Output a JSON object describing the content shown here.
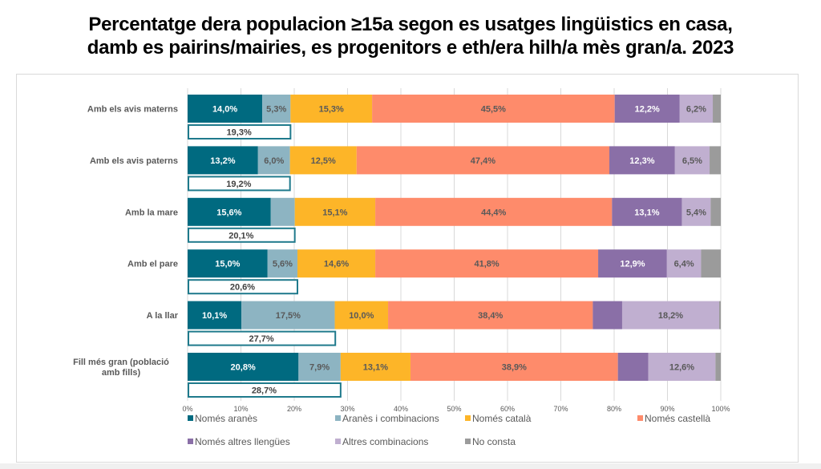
{
  "title_lines": [
    "Percentatge dera populacion ≥15a segon es usatges lingüistics en casa,",
    "damb es pairins/mairies, es progenitors e eth/era hilh/a mès gran/a. 2023"
  ],
  "chart_data": {
    "type": "bar",
    "orientation": "horizontal",
    "stacked": "percent",
    "title": "Percentatge dera populacion ≥15a segon es usatges lingüistics en casa, damb es pairins/mairies, es progenitors e eth/era hilh/a mès gran/a. 2023",
    "xlabel": "",
    "ylabel": "",
    "xlim": [
      0,
      100
    ],
    "x_ticks": [
      "0%",
      "10%",
      "20%",
      "30%",
      "40%",
      "50%",
      "60%",
      "70%",
      "80%",
      "90%",
      "100%"
    ],
    "grid": "vertical",
    "legend_position": "bottom",
    "categories": [
      "Amb els avis materns",
      "Amb els avis paterns",
      "Amb la mare",
      "Amb el pare",
      "A la llar",
      "Fill més gran (població amb fills)"
    ],
    "series": [
      {
        "name": "Només aranès",
        "color": "#006a80",
        "label_color": "#ffffff",
        "values": [
          14.0,
          13.2,
          15.6,
          15.0,
          10.1,
          20.8
        ],
        "labels": [
          "14,0%",
          "13,2%",
          "15,6%",
          "15,0%",
          "10,1%",
          "20,8%"
        ]
      },
      {
        "name": "Aranès i combinacions",
        "color": "#8db4c2",
        "label_color": "#595959",
        "values": [
          5.3,
          6.0,
          4.5,
          5.6,
          17.5,
          7.9
        ],
        "labels": [
          "5,3%",
          "6,0%",
          "",
          "5,6%",
          "17,5%",
          "7,9%"
        ]
      },
      {
        "name": "Només català",
        "color": "#fdb528",
        "label_color": "#595959",
        "values": [
          15.3,
          12.5,
          15.1,
          14.6,
          10.0,
          13.1
        ],
        "labels": [
          "15,3%",
          "12,5%",
          "15,1%",
          "14,6%",
          "10,0%",
          "13,1%"
        ]
      },
      {
        "name": "Només castellà",
        "color": "#fe8b6b",
        "label_color": "#595959",
        "values": [
          45.5,
          47.4,
          44.4,
          41.8,
          38.4,
          38.9
        ],
        "labels": [
          "45,5%",
          "47,4%",
          "44,4%",
          "41,8%",
          "38,4%",
          "38,9%"
        ]
      },
      {
        "name": "Només altres llengües",
        "color": "#8a6fa7",
        "label_color": "#ffffff",
        "values": [
          12.2,
          12.3,
          13.1,
          12.9,
          5.5,
          5.7
        ],
        "labels": [
          "12,2%",
          "12,3%",
          "13,1%",
          "12,9%",
          "",
          ""
        ]
      },
      {
        "name": "Altres combinacions",
        "color": "#c0afd0",
        "label_color": "#595959",
        "values": [
          6.2,
          6.5,
          5.4,
          6.4,
          18.2,
          12.6
        ],
        "labels": [
          "6,2%",
          "6,5%",
          "5,4%",
          "6,4%",
          "18,2%",
          "12,6%"
        ]
      },
      {
        "name": "No consta",
        "color": "#9b9b9b",
        "label_color": "#595959",
        "values": [
          1.5,
          2.1,
          1.9,
          3.7,
          0.3,
          1.0
        ],
        "labels": [
          "",
          "",
          "",
          "",
          "",
          ""
        ]
      }
    ],
    "aranes_total": {
      "description": "Només aranès + Aranès i combinacions",
      "outline_color": "#1f7a8c",
      "values": [
        19.3,
        19.2,
        20.1,
        20.6,
        27.7,
        28.7
      ],
      "labels": [
        "19,3%",
        "19,2%",
        "20,1%",
        "20,6%",
        "27,7%",
        "28,7%"
      ]
    }
  }
}
